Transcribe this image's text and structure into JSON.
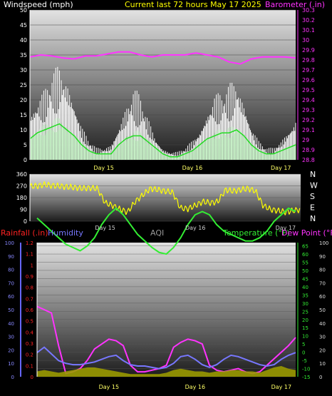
{
  "header": {
    "left_title": "Windspeed (mph)",
    "center_title": "Current last 72 hours May 17 2025",
    "right_title": "Barometer (.in)"
  },
  "colors": {
    "wind_max": "#ffffff",
    "wind_avg": "#22dd22",
    "barometer": "#ff33ff",
    "wind_dir": "#ffff00",
    "rain": "#ff2222",
    "humidity": "#7777ff",
    "temperature": "#33ee33",
    "dew_point": "#ff33ff",
    "aqi": "#999900",
    "day_text": "#ffff66"
  },
  "chart_data": [
    {
      "type": "area",
      "panel": "wind",
      "x_ticks": [
        "Day 15",
        "Day 16",
        "Day 17"
      ],
      "hours_span": 72,
      "ylim": [
        0,
        50
      ],
      "y_ticks": [
        0,
        5,
        10,
        15,
        20,
        25,
        30,
        35,
        40,
        45,
        50
      ],
      "y2lim": [
        28.8,
        30.3
      ],
      "y2_ticks": [
        "28.8",
        "28.9",
        "29",
        "29.1",
        "29.2",
        "29.3",
        "29.4",
        "29.5",
        "29.6",
        "29.7",
        "29.8",
        "29.9",
        "30",
        "30.1",
        "30.2",
        "30.3"
      ],
      "series": [
        {
          "key": "wind_max",
          "hours": [
            0,
            2,
            4,
            6,
            8,
            10,
            12,
            14,
            16,
            18,
            20,
            22,
            24,
            26,
            28,
            30,
            32,
            34,
            36,
            38,
            40,
            42,
            44,
            46,
            48,
            50,
            52,
            54,
            56,
            58,
            60,
            62,
            64,
            66,
            68,
            70,
            72
          ],
          "values": [
            13,
            16,
            18,
            22,
            24,
            22,
            16,
            9,
            5,
            3,
            3,
            4,
            9,
            14,
            18,
            16,
            11,
            6,
            3,
            2,
            2,
            3,
            5,
            8,
            13,
            17,
            17,
            19,
            21,
            16,
            9,
            5,
            3,
            3,
            5,
            8,
            11
          ]
        },
        {
          "key": "wind_avg",
          "hours": [
            0,
            2,
            4,
            6,
            8,
            10,
            12,
            14,
            16,
            18,
            20,
            22,
            24,
            26,
            28,
            30,
            32,
            34,
            36,
            38,
            40,
            42,
            44,
            46,
            48,
            50,
            52,
            54,
            56,
            58,
            60,
            62,
            64,
            66,
            68,
            70,
            72
          ],
          "values": [
            7,
            9,
            10,
            11,
            12,
            10,
            8,
            5,
            3,
            2,
            2,
            2,
            5,
            7,
            8,
            8,
            6,
            4,
            2,
            1,
            1,
            2,
            3,
            5,
            7,
            8,
            9,
            9,
            10,
            8,
            5,
            3,
            2,
            2,
            3,
            4,
            5
          ]
        },
        {
          "key": "barometer",
          "hours": [
            0,
            3,
            6,
            9,
            12,
            15,
            18,
            21,
            24,
            27,
            30,
            33,
            36,
            39,
            42,
            45,
            48,
            51,
            54,
            57,
            60,
            63,
            66,
            69,
            72
          ],
          "values": [
            29.83,
            29.85,
            29.84,
            29.82,
            29.81,
            29.84,
            29.84,
            29.86,
            29.88,
            29.88,
            29.85,
            29.83,
            29.85,
            29.85,
            29.85,
            29.87,
            29.85,
            29.83,
            29.78,
            29.76,
            29.81,
            29.83,
            29.83,
            29.83,
            29.82
          ]
        }
      ]
    },
    {
      "type": "scatter",
      "panel": "wind_direction",
      "ylim": [
        0,
        360
      ],
      "y_ticks": [
        0,
        90,
        180,
        270,
        360
      ],
      "compass_labels": [
        "N",
        "W",
        "S",
        "E",
        "N"
      ],
      "x_ticks": [
        "Day 15",
        "Day 16",
        "Day 17"
      ],
      "series": [
        {
          "key": "wind_dir",
          "hours": [
            0,
            2,
            4,
            6,
            8,
            10,
            12,
            14,
            16,
            18,
            20,
            22,
            24,
            26,
            28,
            30,
            32,
            34,
            36,
            38,
            40,
            42,
            44,
            46,
            48,
            50,
            52,
            54,
            56,
            58,
            60,
            62,
            64,
            66,
            68,
            70,
            72
          ],
          "values": [
            265,
            270,
            280,
            272,
            268,
            262,
            258,
            250,
            255,
            248,
            140,
            120,
            90,
            70,
            150,
            200,
            250,
            240,
            230,
            220,
            100,
            95,
            120,
            150,
            140,
            150,
            240,
            230,
            240,
            250,
            230,
            120,
            90,
            80,
            70,
            80,
            90
          ]
        }
      ]
    },
    {
      "type": "line",
      "panel": "rain_humidity_temp",
      "header_labels": [
        "Rainfall (.in)",
        "Humidity",
        "AQI",
        "Temperature (°F)",
        "Dew Point (°F)"
      ],
      "x_ticks": [
        "Day 15",
        "Day 16",
        "Day 17"
      ],
      "rain_ticks": [
        "0",
        "0.1",
        "0.2",
        "0.3",
        "0.4",
        "0.5",
        "0.6",
        "0.7",
        "0.8",
        "0.9",
        "1",
        "1.1",
        "1.2"
      ],
      "humidity_ticks": [
        0,
        10,
        20,
        30,
        40,
        50,
        60,
        70,
        80,
        90,
        100
      ],
      "temp_ticks": [
        -15,
        -10,
        -5,
        0,
        5,
        10,
        15,
        20,
        25,
        30,
        35,
        40,
        45,
        50,
        55,
        60,
        65
      ],
      "ylim_temp": [
        -15,
        67
      ],
      "ylim_humidity": [
        0,
        100
      ],
      "series": [
        {
          "key": "temperature",
          "hours": [
            0,
            2,
            4,
            6,
            8,
            10,
            12,
            14,
            16,
            18,
            20,
            22,
            24,
            26,
            28,
            30,
            32,
            34,
            36,
            38,
            40,
            42,
            44,
            46,
            48,
            50,
            52,
            54,
            56,
            58,
            60,
            62,
            64,
            66,
            68,
            70,
            72
          ],
          "values": [
            82,
            78,
            74,
            70,
            66,
            64,
            62,
            65,
            70,
            78,
            84,
            88,
            84,
            78,
            72,
            68,
            64,
            61,
            60,
            64,
            70,
            78,
            84,
            86,
            84,
            78,
            74,
            72,
            70,
            68,
            68,
            70,
            74,
            80,
            84,
            88,
            86
          ]
        },
        {
          "key": "dew_point",
          "hours": [
            0,
            2,
            4,
            6,
            8,
            10,
            12,
            14,
            16,
            18,
            20,
            22,
            24,
            26,
            28,
            30,
            32,
            34,
            36,
            38,
            40,
            42,
            44,
            46,
            48,
            50,
            52,
            54,
            56,
            58,
            60,
            62,
            64,
            66,
            68,
            70,
            72
          ],
          "values": [
            28,
            26,
            24,
            4,
            -13,
            -12,
            -10,
            -5,
            2,
            5,
            8,
            7,
            4,
            -8,
            -12,
            -12,
            -11,
            -10,
            -8,
            3,
            6,
            8,
            7,
            5,
            -8,
            -11,
            -12,
            -11,
            -10,
            -12,
            -13,
            -12,
            -8,
            -4,
            0,
            4,
            9
          ]
        },
        {
          "key": "humidity",
          "hours": [
            0,
            2,
            4,
            6,
            8,
            10,
            12,
            14,
            16,
            18,
            20,
            22,
            24,
            26,
            28,
            30,
            32,
            34,
            36,
            38,
            40,
            42,
            44,
            46,
            48,
            50,
            52,
            54,
            56,
            58,
            60,
            62,
            64,
            66,
            68,
            70,
            72
          ],
          "values": [
            18,
            22,
            17,
            12,
            10,
            9,
            9,
            10,
            11,
            13,
            15,
            16,
            12,
            9,
            8,
            8,
            7,
            6,
            7,
            10,
            15,
            16,
            13,
            9,
            7,
            9,
            13,
            16,
            15,
            13,
            11,
            9,
            8,
            9,
            13,
            16,
            18
          ]
        },
        {
          "key": "aqi",
          "hours": [
            0,
            2,
            4,
            6,
            8,
            10,
            12,
            14,
            16,
            18,
            20,
            22,
            24,
            26,
            28,
            30,
            32,
            34,
            36,
            38,
            40,
            42,
            44,
            46,
            48,
            50,
            52,
            54,
            56,
            58,
            60,
            62,
            64,
            66,
            68,
            70,
            72
          ],
          "values": [
            4,
            5,
            4,
            3,
            4,
            5,
            6,
            7,
            7,
            6,
            5,
            4,
            3,
            2,
            2,
            2,
            2,
            2,
            3,
            5,
            6,
            5,
            4,
            4,
            3,
            4,
            4,
            5,
            5,
            4,
            4,
            3,
            5,
            7,
            8,
            6,
            5
          ]
        }
      ]
    }
  ]
}
